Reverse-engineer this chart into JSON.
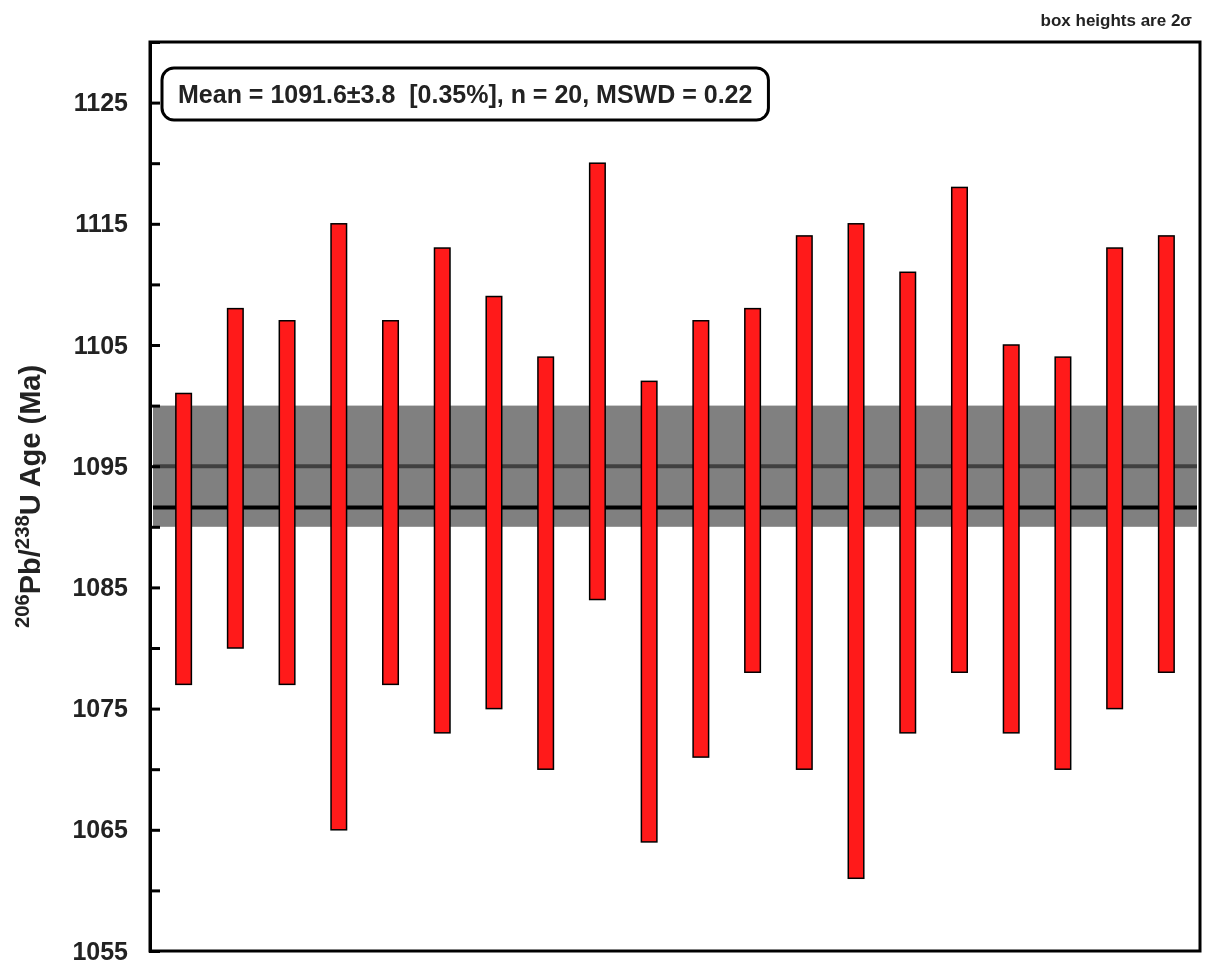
{
  "chart_data": {
    "type": "bar",
    "ylabel": "$^{206}$Pb/$^{238}$U Age (Ma)",
    "categories": [
      null,
      null,
      null,
      null,
      null,
      null,
      null,
      null,
      null,
      null,
      null,
      null,
      null,
      null,
      null,
      null,
      null,
      null,
      null,
      null
    ],
    "base": [
      1077,
      1080,
      1077,
      1065,
      1077,
      1073,
      1075,
      1070,
      1084,
      1064,
      1071,
      1078,
      1070,
      1061,
      1073,
      1078,
      1073,
      1070,
      1075,
      1078
    ],
    "values": [
      24,
      28,
      30,
      50,
      30,
      40,
      34,
      34,
      36,
      38,
      36,
      30,
      44,
      54,
      38,
      40,
      32,
      34,
      38,
      36
    ],
    "color": "#ff1a1a",
    "ylim": [
      1055,
      1130
    ],
    "yticks": [
      1055,
      {
        "value": 1060,
        "label": null
      },
      1065,
      {
        "value": 1070,
        "label": null
      },
      1075,
      {
        "value": 1080,
        "label": null
      },
      1085,
      {
        "value": 1090,
        "label": null
      },
      1095,
      {
        "value": 1100,
        "label": null
      },
      1105,
      {
        "value": 1110,
        "label": null
      },
      1115,
      {
        "value": 1120,
        "label": null
      },
      1125
    ],
    "tick_labels": "y",
    "grid": false,
    "bands": [
      {
        "axis": "y",
        "from": 1090,
        "to": 1100,
        "color": "#808080"
      }
    ],
    "ref_lines": [
      {
        "axis": "y",
        "value": 1095,
        "color": "#404040"
      },
      {
        "axis": "y",
        "value": 1091.6,
        "color": "#000000"
      }
    ],
    "annotations": [
      "Mean = 1091.6±3.8  [0.35%], n = 20, MSWD = 0.22",
      "box heights are 2σ"
    ]
  }
}
